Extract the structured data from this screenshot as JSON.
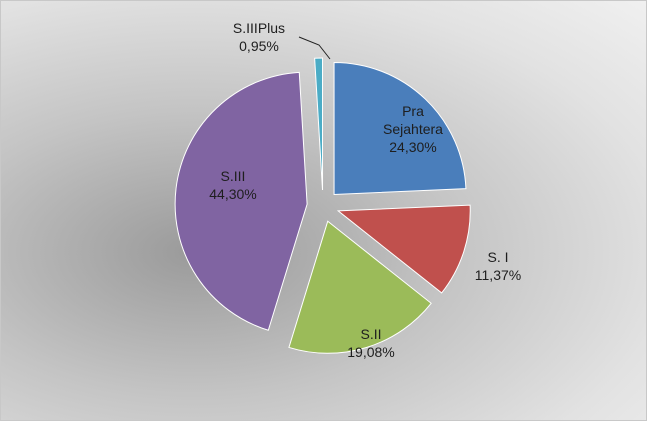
{
  "chart_data": {
    "type": "pie",
    "categories": [
      "Pra Sejahtera",
      "S. I",
      "S.II",
      "S.III",
      "S.IIIPlus"
    ],
    "values": [
      24.3,
      11.37,
      19.08,
      44.3,
      0.95
    ],
    "value_labels": [
      "24,30%",
      "11,37%",
      "19,08%",
      "44,30%",
      "0,95%"
    ],
    "colors": [
      "#4a7ebb",
      "#c0504d",
      "#9bbb59",
      "#8064a2",
      "#4bacc6"
    ]
  }
}
